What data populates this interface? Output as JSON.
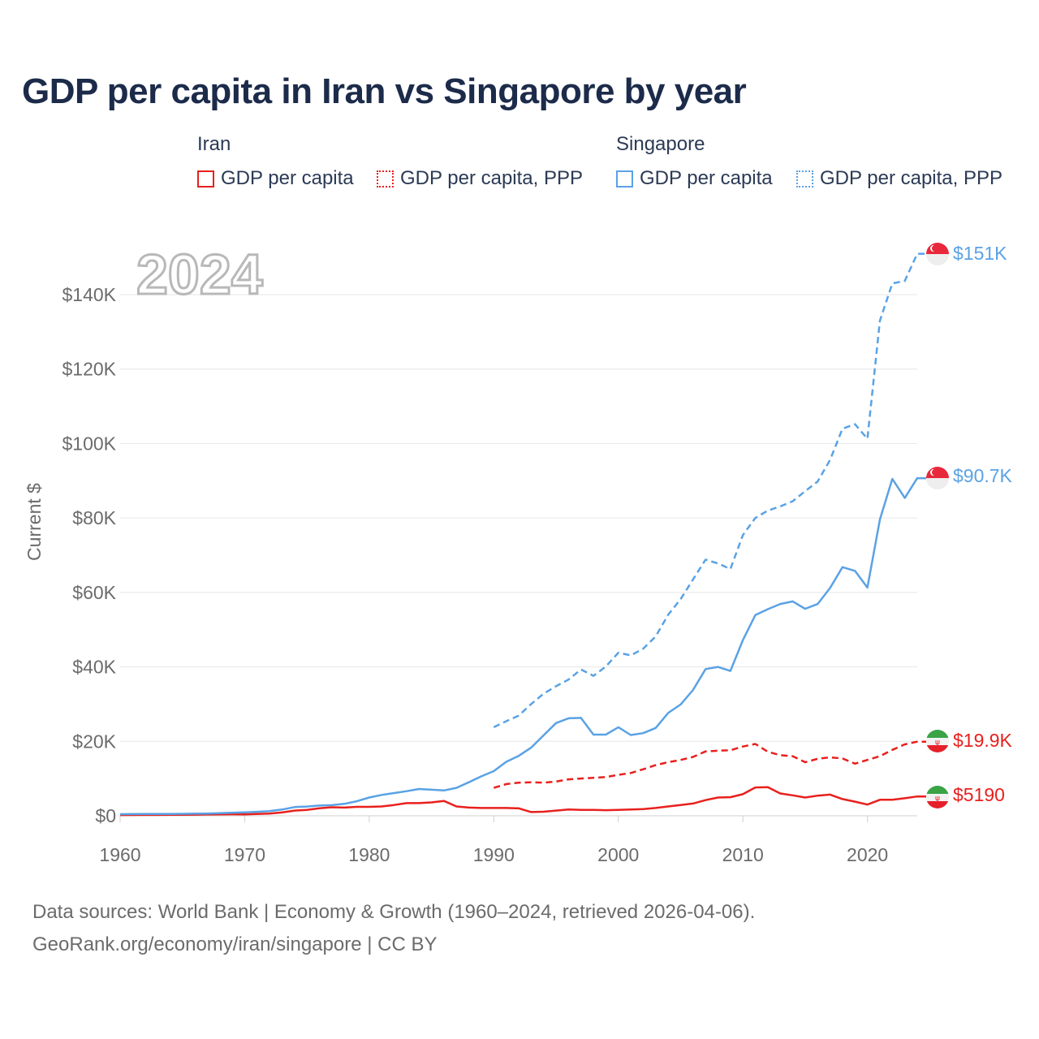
{
  "title": "GDP per capita in Iran vs Singapore by year",
  "legend": {
    "groups": [
      {
        "label": "Iran",
        "items": [
          "GDP per capita",
          "GDP per capita, PPP"
        ]
      },
      {
        "label": "Singapore",
        "items": [
          "GDP per capita",
          "GDP per capita, PPP"
        ]
      }
    ]
  },
  "footer": {
    "line1": "Data sources: World Bank | Economy & Growth (1960–2024, retrieved 2026-04-06).",
    "line2": "GeoRank.org/economy/iran/singapore | CC BY"
  },
  "colors": {
    "iran": "#e8201d",
    "singapore": "#5aa2e5",
    "grid": "#e6e6e6",
    "axis_text": "#6b6b6b",
    "year_watermark": "#b8b8b8"
  },
  "chart_data": {
    "type": "line",
    "year_label": "2024",
    "ylabel": "Current $",
    "xlim": [
      1960,
      2024
    ],
    "ylim": [
      0,
      150000
    ],
    "x_ticks": [
      1960,
      1970,
      1980,
      1990,
      2000,
      2010,
      2020
    ],
    "x_tick_labels": [
      "1960",
      "1970",
      "1980",
      "1990",
      "2000",
      "2010",
      "2020"
    ],
    "y_ticks": [
      0,
      20000,
      40000,
      60000,
      80000,
      100000,
      120000,
      140000
    ],
    "y_tick_labels": [
      "$0",
      "$20K",
      "$40K",
      "$60K",
      "$80K",
      "$100K",
      "$120K",
      "$140K"
    ],
    "series": [
      {
        "name": "Iran GDP per capita",
        "country": "iran",
        "style": "solid",
        "end_label": "$5190",
        "x": [
          1960,
          1961,
          1962,
          1963,
          1964,
          1965,
          1966,
          1967,
          1968,
          1969,
          1970,
          1971,
          1972,
          1973,
          1974,
          1975,
          1976,
          1977,
          1978,
          1979,
          1980,
          1981,
          1982,
          1983,
          1984,
          1985,
          1986,
          1987,
          1988,
          1989,
          1990,
          1991,
          1992,
          1993,
          1994,
          1995,
          1996,
          1997,
          1998,
          1999,
          2000,
          2001,
          2002,
          2003,
          2004,
          2005,
          2006,
          2007,
          2008,
          2009,
          2010,
          2011,
          2012,
          2013,
          2014,
          2015,
          2016,
          2017,
          2018,
          2019,
          2020,
          2021,
          2022,
          2023,
          2024
        ],
        "values": [
          200,
          220,
          230,
          230,
          260,
          290,
          310,
          340,
          380,
          420,
          400,
          480,
          620,
          900,
          1400,
          1600,
          2000,
          2300,
          2200,
          2400,
          2400,
          2500,
          2900,
          3400,
          3400,
          3600,
          4000,
          2500,
          2200,
          2100,
          2100,
          2100,
          2000,
          1000,
          1100,
          1400,
          1700,
          1600,
          1600,
          1500,
          1600,
          1700,
          1800,
          2100,
          2500,
          2900,
          3300,
          4200,
          4900,
          5000,
          5800,
          7600,
          7700,
          6000,
          5500,
          4900,
          5400,
          5700,
          4500,
          3800,
          3000,
          4300,
          4300,
          4700,
          5190
        ]
      },
      {
        "name": "Iran GDP per capita, PPP",
        "country": "iran",
        "style": "dashed",
        "end_label": "$19.9K",
        "x": [
          1990,
          1991,
          1992,
          1993,
          1994,
          1995,
          1996,
          1997,
          1998,
          1999,
          2000,
          2001,
          2002,
          2003,
          2004,
          2005,
          2006,
          2007,
          2008,
          2009,
          2010,
          2011,
          2012,
          2013,
          2014,
          2015,
          2016,
          2017,
          2018,
          2019,
          2020,
          2021,
          2022,
          2023,
          2024
        ],
        "values": [
          7500,
          8500,
          8900,
          9000,
          8900,
          9200,
          9800,
          10000,
          10200,
          10400,
          11000,
          11500,
          12500,
          13600,
          14400,
          15000,
          15800,
          17300,
          17500,
          17600,
          18600,
          19300,
          17200,
          16300,
          16000,
          14400,
          15300,
          15700,
          15400,
          14000,
          15000,
          16000,
          17700,
          19200,
          19900
        ]
      },
      {
        "name": "Singapore GDP per capita",
        "country": "singapore",
        "style": "solid",
        "end_label": "$90.7K",
        "x": [
          1960,
          1961,
          1962,
          1963,
          1964,
          1965,
          1966,
          1967,
          1968,
          1969,
          1970,
          1971,
          1972,
          1973,
          1974,
          1975,
          1976,
          1977,
          1978,
          1979,
          1980,
          1981,
          1982,
          1983,
          1984,
          1985,
          1986,
          1987,
          1988,
          1989,
          1990,
          1991,
          1992,
          1993,
          1994,
          1995,
          1996,
          1997,
          1998,
          1999,
          2000,
          2001,
          2002,
          2003,
          2004,
          2005,
          2006,
          2007,
          2008,
          2009,
          2010,
          2011,
          2012,
          2013,
          2014,
          2015,
          2016,
          2017,
          2018,
          2019,
          2020,
          2021,
          2022,
          2023,
          2024
        ],
        "values": [
          430,
          450,
          470,
          490,
          480,
          520,
          560,
          620,
          700,
          810,
          930,
          1070,
          1260,
          1690,
          2340,
          2490,
          2750,
          2850,
          3200,
          3900,
          4900,
          5600,
          6100,
          6600,
          7200,
          7000,
          6800,
          7500,
          9000,
          10600,
          12000,
          14500,
          16100,
          18300,
          21600,
          24900,
          26200,
          26300,
          21800,
          21800,
          23800,
          21700,
          22200,
          23600,
          27600,
          29900,
          33800,
          39400,
          40000,
          38900,
          47200,
          53900,
          55500,
          56900,
          57600,
          55600,
          56900,
          61200,
          66800,
          65800,
          61300,
          79600,
          90500,
          85400,
          90700
        ]
      },
      {
        "name": "Singapore GDP per capita, PPP",
        "country": "singapore",
        "style": "dashed",
        "end_label": "$151K",
        "x": [
          1990,
          1991,
          1992,
          1993,
          1994,
          1995,
          1996,
          1997,
          1998,
          1999,
          2000,
          2001,
          2002,
          2003,
          2004,
          2005,
          2006,
          2007,
          2008,
          2009,
          2010,
          2011,
          2012,
          2013,
          2014,
          2015,
          2016,
          2017,
          2018,
          2019,
          2020,
          2021,
          2022,
          2023,
          2024
        ],
        "values": [
          23800,
          25400,
          26900,
          30000,
          32800,
          34800,
          36600,
          39300,
          37600,
          40100,
          43800,
          43100,
          44900,
          48200,
          54000,
          58200,
          63500,
          68800,
          67800,
          66300,
          75400,
          80000,
          82000,
          83100,
          84500,
          87200,
          89800,
          95600,
          104000,
          105200,
          101300,
          133000,
          143000,
          143700,
          151000
        ]
      }
    ]
  }
}
